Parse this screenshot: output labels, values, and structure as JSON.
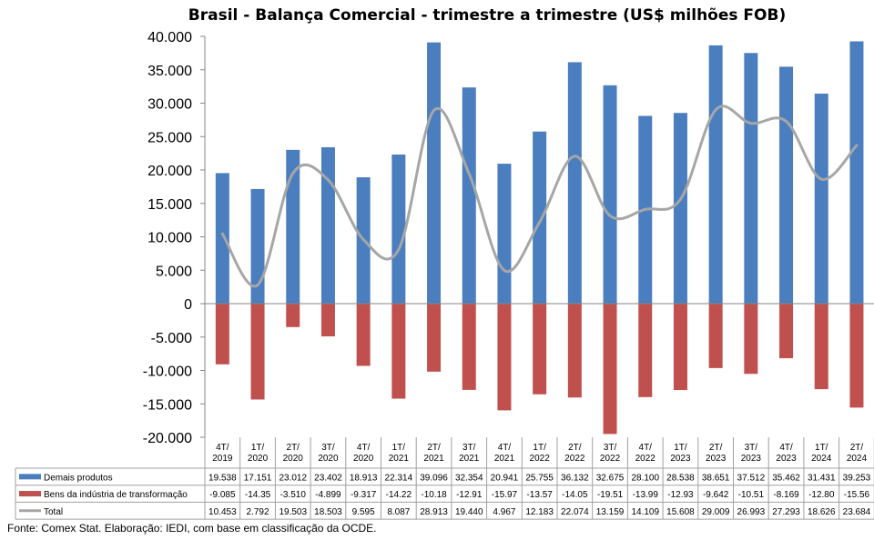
{
  "chart_data": {
    "type": "bar",
    "title": "Brasil - Balança Comercial - trimestre a trimestre (US$ milhões FOB)",
    "categories": [
      [
        "4T/",
        "2019"
      ],
      [
        "1T/",
        "2020"
      ],
      [
        "2T/",
        "2020"
      ],
      [
        "3T/",
        "2020"
      ],
      [
        "4T/",
        "2020"
      ],
      [
        "1T/",
        "2021"
      ],
      [
        "2T/",
        "2021"
      ],
      [
        "3T/",
        "2021"
      ],
      [
        "4T/",
        "2021"
      ],
      [
        "1T/",
        "2022"
      ],
      [
        "2T/",
        "2022"
      ],
      [
        "3T/",
        "2022"
      ],
      [
        "4T/",
        "2022"
      ],
      [
        "1T/",
        "2023"
      ],
      [
        "2T/",
        "2023"
      ],
      [
        "3T/",
        "2023"
      ],
      [
        "4T/",
        "2023"
      ],
      [
        "1T/",
        "2024"
      ],
      [
        "2T/",
        "2024"
      ]
    ],
    "ylim": [
      -20000,
      40000
    ],
    "yticks": [
      40000,
      35000,
      30000,
      25000,
      20000,
      15000,
      10000,
      5000,
      0,
      -5000,
      -10000,
      -15000,
      -20000
    ],
    "ytick_labels": [
      "40.000",
      "35.000",
      "30.000",
      "25.000",
      "20.000",
      "15.000",
      "10.000",
      "5.000",
      "0",
      "-5.000",
      "-10.000",
      "-15.000",
      "-20.000"
    ],
    "series": [
      {
        "name": "Demais produtos",
        "kind": "bar",
        "color": "#4a7ebf",
        "values": [
          19538,
          17151,
          23012,
          23402,
          18913,
          22314,
          39096,
          32354,
          20941,
          25755,
          36132,
          32675,
          28100,
          28538,
          38651,
          37512,
          35462,
          31431,
          39253
        ],
        "labels": [
          "19.538",
          "17.151",
          "23.012",
          "23.402",
          "18.913",
          "22.314",
          "39.096",
          "32.354",
          "20.941",
          "25.755",
          "36.132",
          "32.675",
          "28.100",
          "28.538",
          "38.651",
          "37.512",
          "35.462",
          "31.431",
          "39.253"
        ]
      },
      {
        "name": "Bens da indústria de transformação",
        "kind": "bar",
        "color": "#c0504d",
        "values": [
          -9085,
          -14350,
          -3510,
          -4899,
          -9317,
          -14220,
          -10180,
          -12910,
          -15970,
          -13570,
          -14050,
          -19510,
          -13990,
          -12930,
          -9642,
          -10510,
          -8169,
          -12800,
          -15560
        ],
        "labels": [
          "-9.085",
          "-14.35",
          "-3.510",
          "-4.899",
          "-9.317",
          "-14.22",
          "-10.18",
          "-12.91",
          "-15.97",
          "-13.57",
          "-14.05",
          "-19.51",
          "-13.99",
          "-12.93",
          "-9.642",
          "-10.51",
          "-8.169",
          "-12.80",
          "-15.56"
        ]
      },
      {
        "name": "Total",
        "kind": "line",
        "color": "#a6a6a6",
        "values": [
          10453,
          2792,
          19503,
          18503,
          9595,
          8087,
          28913,
          19440,
          4967,
          12183,
          22074,
          13159,
          14109,
          15608,
          29009,
          26993,
          27293,
          18626,
          23684
        ],
        "labels": [
          "10.453",
          "2.792",
          "19.503",
          "18.503",
          "9.595",
          "8.087",
          "28.913",
          "19.440",
          "4.967",
          "12.183",
          "22.074",
          "13.159",
          "14.109",
          "15.608",
          "29.009",
          "26.993",
          "27.293",
          "18.626",
          "23.684"
        ]
      }
    ],
    "legend": "data-table-below",
    "grid": false,
    "note": "Fonte: Comex Stat. Elaboração: IEDI, com base em classificação da OCDE."
  }
}
